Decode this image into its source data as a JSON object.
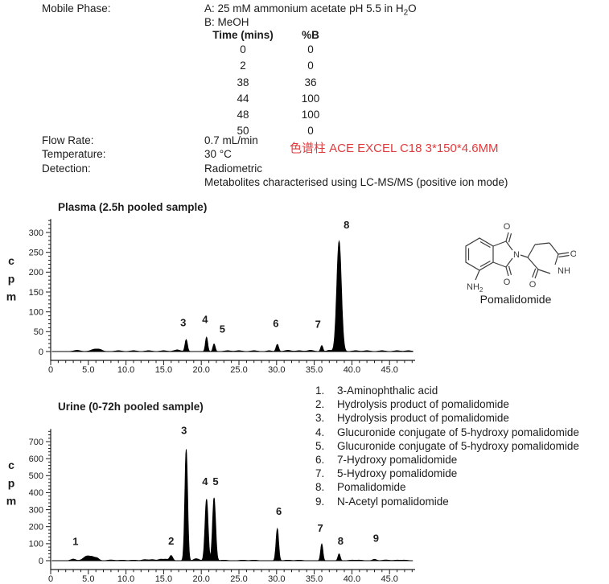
{
  "colors": {
    "text": "#1c1c1c",
    "red_note": "#e03c3e",
    "trace": "#000000",
    "axis": "#1c1c1c"
  },
  "method": {
    "mobile_phase": {
      "label": "Mobile Phase:",
      "line_a_pre": "A: 25 mM ammonium acetate pH 5.5 in H",
      "line_a_sub": "2",
      "line_a_post": "O",
      "line_b": "B: MeOH"
    },
    "gradient": {
      "col_time": "Time (mins)",
      "col_b": "%B",
      "rows": [
        [
          "0",
          "0"
        ],
        [
          "2",
          "0"
        ],
        [
          "38",
          "36"
        ],
        [
          "44",
          "100"
        ],
        [
          "48",
          "100"
        ],
        [
          "50",
          "0"
        ]
      ]
    },
    "flow_rate": {
      "label": "Flow Rate:",
      "value": "0.7 mL/min"
    },
    "temperature": {
      "label": "Temperature:",
      "value": "30 °C"
    },
    "detection": {
      "label": "Detection:",
      "value": "Radiometric"
    },
    "detection_note": "Metabolites characterised using LC-MS/MS (positive ion mode)",
    "column_note": "色谱柱 ACE EXCEL C18 3*150*4.6MM"
  },
  "structure": {
    "caption": "Pomalidomide",
    "atom_n": "N",
    "atom_nh": "NH",
    "atom_nh2_main": "NH",
    "atom_nh2_sub": "2",
    "atom_o1": "O",
    "atom_o2": "O",
    "atom_o3": "O",
    "atom_o4": "O"
  },
  "legend": {
    "items": [
      {
        "num": "1.",
        "text": "3-Aminophthalic acid"
      },
      {
        "num": "2.",
        "text": "Hydrolysis product of pomalidomide"
      },
      {
        "num": "3.",
        "text": "Hydrolysis product of pomalidomide"
      },
      {
        "num": "4.",
        "text": "Glucuronide conjugate of 5-hydroxy pomalidomide"
      },
      {
        "num": "5.",
        "text": "Glucuronide conjugate of 5-hydroxy pomalidomide"
      },
      {
        "num": "6.",
        "text": "7-Hydroxy pomalidomide"
      },
      {
        "num": "7.",
        "text": "5-Hydroxy pomalidomide"
      },
      {
        "num": "8.",
        "text": "Pomalidomide"
      },
      {
        "num": "9.",
        "text": "N-Acetyl pomalidomide"
      }
    ]
  },
  "chart_data": [
    {
      "id": "plasma",
      "type": "area",
      "title": "Plasma (2.5h pooled sample)",
      "xlabel": "",
      "ylabel": "cpm",
      "xlim": [
        0,
        48.4
      ],
      "ylim": [
        0,
        334
      ],
      "x_tick_major": 5,
      "x_tick_minor": 1,
      "x_label_max": 45,
      "y_tick_major": 50,
      "y_tick_minor": 10,
      "y_label_max": 300,
      "grid": false,
      "legend_position": "none",
      "x_tick_labels": [
        "0",
        "5.0",
        "10.0",
        "15.0",
        "20.0",
        "25.0",
        "30.0",
        "35.0",
        "40.0",
        "45.0"
      ],
      "y_tick_labels": [
        "0",
        "50",
        "100",
        "150",
        "200",
        "250",
        "300"
      ],
      "peaks": [
        {
          "label": "3",
          "rt": 18.0,
          "cpm": 30,
          "sigma": 0.16,
          "lx": 17.6,
          "ly": 64
        },
        {
          "label": "4",
          "rt": 20.7,
          "cpm": 36,
          "sigma": 0.15,
          "lx": 20.5,
          "ly": 72
        },
        {
          "label": "5",
          "rt": 21.7,
          "cpm": 19,
          "sigma": 0.15,
          "lx": 22.8,
          "ly": 48
        },
        {
          "label": "6",
          "rt": 30.1,
          "cpm": 18,
          "sigma": 0.17,
          "lx": 29.9,
          "ly": 62
        },
        {
          "label": "7",
          "rt": 36.0,
          "cpm": 15,
          "sigma": 0.15,
          "lx": 35.5,
          "ly": 60
        },
        {
          "label": "8",
          "rt": 38.3,
          "cpm": 278,
          "sigma": 0.3,
          "lx": 39.3,
          "ly": 310
        }
      ],
      "baseline_bumps": [
        [
          3.5,
          3,
          0.4
        ],
        [
          5.9,
          6,
          0.5
        ],
        [
          6.6,
          3,
          0.3
        ],
        [
          9,
          2,
          0.4
        ],
        [
          11,
          2,
          0.4
        ],
        [
          13,
          2,
          0.4
        ],
        [
          15,
          2,
          0.4
        ],
        [
          16.8,
          4,
          0.4
        ],
        [
          23.5,
          2,
          0.4
        ],
        [
          25,
          2,
          0.4
        ],
        [
          27,
          2,
          0.4
        ],
        [
          29,
          2,
          0.3
        ],
        [
          31.5,
          3,
          0.4
        ],
        [
          33,
          2,
          0.4
        ],
        [
          34.5,
          3,
          0.4
        ],
        [
          37,
          3,
          0.3
        ],
        [
          40.5,
          2,
          0.4
        ],
        [
          42,
          2,
          0.4
        ],
        [
          44,
          2,
          0.4
        ],
        [
          46,
          2,
          0.4
        ],
        [
          47.5,
          2,
          0.4
        ]
      ]
    },
    {
      "id": "urine",
      "type": "area",
      "title": "Urine (0-72h pooled sample)",
      "xlabel": "",
      "ylabel": "cpm",
      "xlim": [
        0,
        48.4
      ],
      "ylim": [
        0,
        775
      ],
      "x_tick_major": 5,
      "x_tick_minor": 1,
      "x_label_max": 45,
      "y_tick_major": 100,
      "y_tick_minor": 20,
      "y_label_max": 700,
      "grid": false,
      "legend_position": "none",
      "x_tick_labels": [
        "0",
        "5.0",
        "10.0",
        "15.0",
        "20.0",
        "25.0",
        "30.0",
        "35.0",
        "40.0",
        "45.0"
      ],
      "y_tick_labels": [
        "0",
        "100",
        "200",
        "300",
        "400",
        "500",
        "600",
        "700"
      ],
      "peaks": [
        {
          "label": "1",
          "rt": 3.0,
          "cpm": 9,
          "sigma": 0.3,
          "lx": 3.3,
          "ly": 92
        },
        {
          "label": "2",
          "rt": 16.0,
          "cpm": 30,
          "sigma": 0.2,
          "lx": 16.0,
          "ly": 95
        },
        {
          "label": "3",
          "rt": 18.0,
          "cpm": 655,
          "sigma": 0.18,
          "lx": 17.7,
          "ly": 745
        },
        {
          "label": "4",
          "rt": 20.7,
          "cpm": 362,
          "sigma": 0.2,
          "lx": 20.5,
          "ly": 445
        },
        {
          "label": "5",
          "rt": 21.7,
          "cpm": 370,
          "sigma": 0.2,
          "lx": 21.9,
          "ly": 445
        },
        {
          "label": "6",
          "rt": 30.1,
          "cpm": 188,
          "sigma": 0.17,
          "lx": 30.3,
          "ly": 270
        },
        {
          "label": "7",
          "rt": 36.0,
          "cpm": 98,
          "sigma": 0.15,
          "lx": 35.8,
          "ly": 170
        },
        {
          "label": "8",
          "rt": 38.3,
          "cpm": 40,
          "sigma": 0.15,
          "lx": 38.5,
          "ly": 95
        },
        {
          "label": "9",
          "rt": 43.0,
          "cpm": 8,
          "sigma": 0.25,
          "lx": 43.2,
          "ly": 112
        }
      ],
      "baseline_bumps": [
        [
          4.8,
          26,
          0.45
        ],
        [
          5.6,
          18,
          0.35
        ],
        [
          6.2,
          12,
          0.25
        ],
        [
          8,
          4,
          0.4
        ],
        [
          9.5,
          3,
          0.4
        ],
        [
          11,
          3,
          0.4
        ],
        [
          12.5,
          6,
          0.35
        ],
        [
          13.5,
          6,
          0.35
        ],
        [
          14.6,
          8,
          0.3
        ],
        [
          15.3,
          8,
          0.3
        ],
        [
          19.2,
          9,
          0.25
        ],
        [
          19.6,
          6,
          0.25
        ],
        [
          23,
          3,
          0.4
        ],
        [
          25.5,
          3,
          0.4
        ],
        [
          27,
          3,
          0.4
        ],
        [
          31.5,
          3,
          0.4
        ],
        [
          33,
          3,
          0.4
        ],
        [
          40,
          3,
          0.4
        ],
        [
          41,
          3,
          0.4
        ],
        [
          44.5,
          4,
          0.4
        ],
        [
          46,
          3,
          0.4
        ],
        [
          47,
          3,
          0.4
        ]
      ]
    }
  ]
}
